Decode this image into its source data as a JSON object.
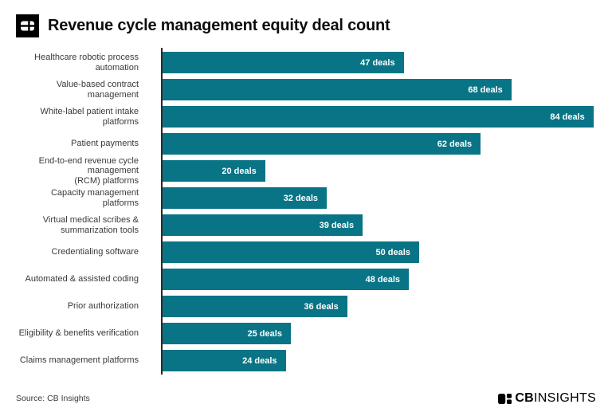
{
  "header": {
    "title": "Revenue cycle management equity deal count"
  },
  "footer": {
    "source": "Source: CB Insights",
    "brand_bold": "CB",
    "brand_light": "INSIGHTS"
  },
  "colors": {
    "bar": "#087486",
    "axis": "#2b2b2b",
    "value_text": "#ffffff"
  },
  "chart_data": {
    "type": "bar",
    "orientation": "horizontal",
    "title": "Revenue cycle management equity deal count",
    "xlabel": "",
    "ylabel": "",
    "xlim": [
      0,
      84.5
    ],
    "grid": false,
    "legend": false,
    "value_labels_inside_bars": true,
    "unit": "deals",
    "categories": [
      "Healthcare robotic process\nautomation",
      "Value-based contract management",
      "White-label patient intake\nplatforms",
      "Patient payments",
      "End-to-end revenue cycle management\n(RCM) platforms",
      "Capacity management platforms",
      "Virtual medical scribes &\nsummarization tools",
      "Credentialing software",
      "Automated & assisted coding",
      "Prior authorization",
      "Eligibility & benefits verification",
      "Claims management platforms"
    ],
    "values": [
      47,
      68,
      84,
      62,
      20,
      32,
      39,
      50,
      48,
      36,
      25,
      24
    ],
    "bar_labels": [
      "47 deals",
      "68 deals",
      "84 deals",
      "62 deals",
      "20 deals",
      "32 deals",
      "39 deals",
      "50 deals",
      "48 deals",
      "36 deals",
      "25 deals",
      "24 deals"
    ]
  }
}
